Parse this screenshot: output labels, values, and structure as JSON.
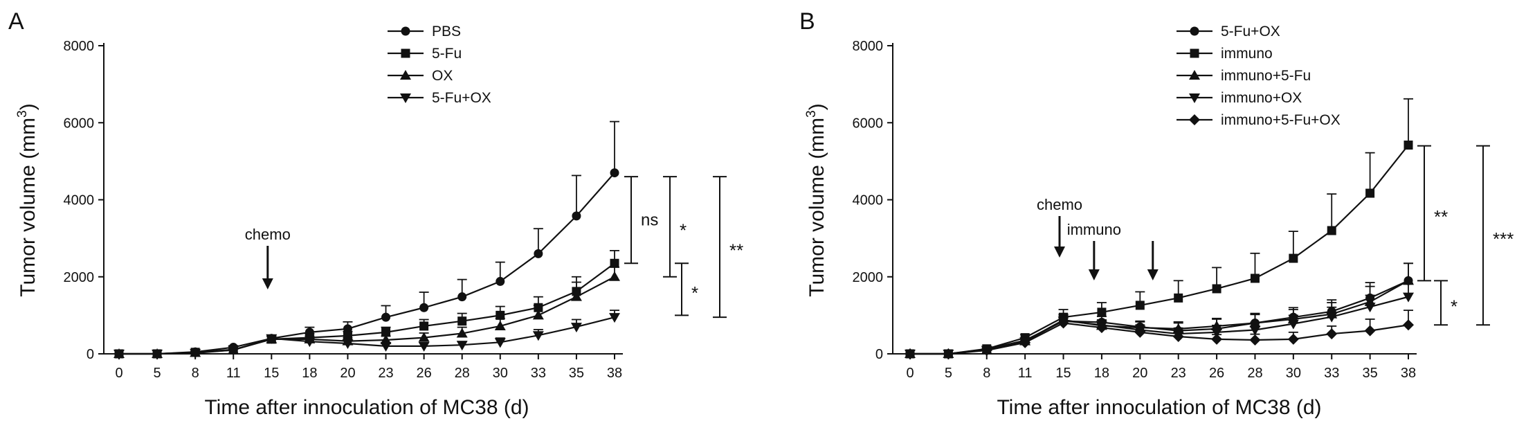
{
  "chart_data": [
    {
      "panel_label": "A",
      "type": "line",
      "ylabel": "Tumor volume (mm",
      "ylabel_sup": "3",
      "ylabel_end": ")",
      "xlabel": "Time after innoculation of MC38 (d)",
      "x": [
        0,
        5,
        8,
        11,
        15,
        18,
        20,
        23,
        26,
        28,
        30,
        33,
        35,
        38
      ],
      "ylim": [
        0,
        8000
      ],
      "yticks": [
        0,
        2000,
        4000,
        6000,
        8000
      ],
      "legend_position": "top-center",
      "series": [
        {
          "name": "PBS",
          "marker": "circle",
          "values": [
            0,
            0,
            50,
            170,
            400,
            560,
            650,
            950,
            1200,
            1480,
            1880,
            2600,
            3580,
            4700
          ],
          "errors": [
            0,
            0,
            20,
            40,
            80,
            130,
            180,
            300,
            400,
            450,
            500,
            650,
            1050,
            1330
          ]
        },
        {
          "name": "5-Fu",
          "marker": "square",
          "values": [
            0,
            0,
            40,
            110,
            380,
            420,
            470,
            560,
            720,
            850,
            1000,
            1200,
            1620,
            2350
          ],
          "errors": [
            0,
            0,
            15,
            30,
            80,
            100,
            110,
            130,
            170,
            200,
            230,
            280,
            380,
            330
          ]
        },
        {
          "name": "OX",
          "marker": "triangle-up",
          "values": [
            0,
            0,
            30,
            100,
            380,
            380,
            330,
            360,
            420,
            530,
            720,
            1000,
            1480,
            2000
          ],
          "errors": [
            0,
            0,
            10,
            30,
            70,
            80,
            80,
            100,
            120,
            160,
            200,
            260,
            380,
            250
          ]
        },
        {
          "name": "5-Fu+OX",
          "marker": "triangle-down",
          "values": [
            0,
            0,
            20,
            100,
            400,
            320,
            270,
            200,
            200,
            230,
            300,
            480,
            700,
            950
          ],
          "errors": [
            0,
            0,
            10,
            30,
            60,
            60,
            60,
            70,
            80,
            90,
            110,
            150,
            190,
            180
          ]
        }
      ],
      "annotations": [
        {
          "text": "chemo",
          "x": 14.6,
          "type": "arrow"
        }
      ],
      "significance": [
        {
          "text": "ns",
          "y1": 4600,
          "y2": 2350
        },
        {
          "text": "*",
          "y1": 4600,
          "y2": 2000
        },
        {
          "text": "*",
          "y1": 2350,
          "y2": 1000
        },
        {
          "text": "**",
          "y1": 4600,
          "y2": 950
        }
      ]
    },
    {
      "panel_label": "B",
      "type": "line",
      "ylabel": "Tumor volume (mm",
      "ylabel_sup": "3",
      "ylabel_end": ")",
      "xlabel": "Time after innoculation of MC38 (d)",
      "x": [
        0,
        5,
        8,
        11,
        15,
        18,
        20,
        23,
        26,
        28,
        30,
        33,
        35,
        38
      ],
      "ylim": [
        0,
        8000
      ],
      "yticks": [
        0,
        2000,
        4000,
        6000,
        8000
      ],
      "legend_position": "top-center",
      "series": [
        {
          "name": "5-Fu+OX",
          "marker": "circle",
          "values": [
            0,
            0,
            120,
            350,
            850,
            820,
            700,
            600,
            650,
            800,
            950,
            1100,
            1450,
            1900
          ],
          "errors": [
            0,
            0,
            30,
            60,
            150,
            150,
            150,
            200,
            250,
            250,
            250,
            300,
            400,
            450
          ]
        },
        {
          "name": "immuno",
          "marker": "square",
          "values": [
            0,
            0,
            130,
            420,
            950,
            1080,
            1260,
            1450,
            1690,
            1960,
            2480,
            3200,
            4170,
            5420
          ],
          "errors": [
            0,
            0,
            40,
            80,
            200,
            250,
            350,
            450,
            550,
            650,
            700,
            950,
            1050,
            1200
          ]
        },
        {
          "name": "immuno+5-Fu",
          "marker": "triangle-up",
          "values": [
            0,
            0,
            100,
            330,
            880,
            730,
            680,
            650,
            720,
            800,
            900,
            1030,
            1350,
            1900
          ],
          "errors": [
            0,
            0,
            30,
            60,
            150,
            150,
            150,
            180,
            200,
            220,
            250,
            300,
            400,
            450
          ]
        },
        {
          "name": "immuno+OX",
          "marker": "triangle-down",
          "values": [
            0,
            0,
            100,
            320,
            860,
            750,
            620,
            520,
            560,
            620,
            780,
            960,
            1220,
            1480
          ],
          "errors": [
            0,
            0,
            30,
            60,
            150,
            130,
            130,
            150,
            180,
            200,
            220,
            250,
            300,
            350
          ]
        },
        {
          "name": "immuno+5-Fu+OX",
          "marker": "diamond",
          "values": [
            0,
            0,
            90,
            290,
            800,
            680,
            560,
            450,
            380,
            360,
            380,
            520,
            600,
            750
          ],
          "errors": [
            0,
            0,
            30,
            50,
            120,
            120,
            120,
            120,
            120,
            150,
            180,
            200,
            300,
            380
          ]
        }
      ],
      "annotations": [
        {
          "text": "chemo",
          "x": 14.6,
          "type": "arrow"
        },
        {
          "text": "immuno",
          "x": 17.4,
          "type": "arrow"
        },
        {
          "text": "",
          "x": 21.0,
          "type": "arrow"
        }
      ],
      "significance": [
        {
          "text": "**",
          "y1": 5400,
          "y2": 1900
        },
        {
          "text": "*",
          "y1": 1900,
          "y2": 750
        },
        {
          "text": "***",
          "y1": 5400,
          "y2": 750
        }
      ]
    }
  ]
}
